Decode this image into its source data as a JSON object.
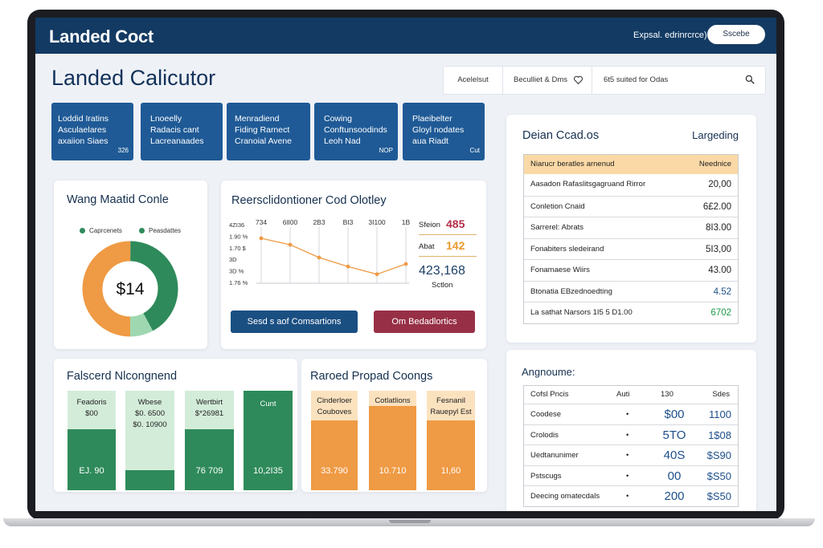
{
  "app": {
    "brand": "Landed Coct",
    "top_link": "Expsal. edrinrcrce)",
    "top_button": "Sscebe"
  },
  "page": {
    "title": "Landed Calicutor"
  },
  "search": {
    "seg1": "Acelelsut",
    "seg2": "Beculliet & Dms",
    "seg3": "6t5 suited for Odas"
  },
  "tiles": [
    {
      "lines": [
        "Loddid Iratins",
        "Asculaelares",
        "axaiion Siaes"
      ],
      "badge": "326"
    },
    {
      "lines": [
        "Lnoeelly",
        "Radacis cant",
        "Lacreanaades"
      ],
      "badge": ""
    },
    {
      "lines": [
        "Menradiend",
        "Fiding Rarnect",
        "Cranoial Avene"
      ],
      "badge": ""
    },
    {
      "lines": [
        "Cowing",
        "Conftunsoodinds",
        "Leoh Nad"
      ],
      "badge": "NOP"
    },
    {
      "lines": [
        "Plaeibelter",
        "Gloyl nodates",
        "aua Riadt"
      ],
      "badge": "Cut"
    }
  ],
  "donut_card": {
    "title": "Wang Maatid Conle",
    "legend": [
      {
        "label": "Caprcenets",
        "color": "#2e8a5a"
      },
      {
        "label": "Peasdattes",
        "color": "#2e8a5a"
      }
    ],
    "center_value": "$14",
    "segments": [
      {
        "name": "orange",
        "fraction": 0.5,
        "color": "#ef9a44"
      },
      {
        "name": "green",
        "fraction": 0.42,
        "color": "#2e8a5a"
      },
      {
        "name": "lightgreen",
        "fraction": 0.08,
        "color": "#9fd8b0"
      }
    ]
  },
  "line_card": {
    "title": "Reersclidontioner Cod Olotley",
    "x_ticks": [
      "734",
      "6lI00",
      "2B3",
      "BI3",
      "3I100",
      "1B"
    ],
    "y_ticks": [
      "4ZI36",
      "1.90 %",
      "1.70 $",
      "3D",
      "3D %",
      "1.76 %"
    ],
    "side_stats": [
      {
        "label": "Sfeion",
        "value": "485",
        "color": "#b3304a"
      },
      {
        "label": "Abat",
        "value": "142",
        "color": "#e89a2c"
      }
    ],
    "big_value": "423,168",
    "big_label": "Sctlon",
    "button1": "Sesd s aof Comsartions",
    "button2": "Om Bedadlortics",
    "colors": {
      "button1": "#1a4f82",
      "button2": "#973046"
    }
  },
  "chart_data": {
    "type": "line",
    "x": [
      "734",
      "6lI00",
      "2B3",
      "BI3",
      "3I100",
      "1B"
    ],
    "series": [
      {
        "values": [
          1.9,
          1.85,
          1.75,
          1.68,
          1.62,
          1.7
        ],
        "color": "#ef9a44"
      }
    ]
  },
  "green_card": {
    "title": "Falscerd Nlcongnend",
    "bars": [
      {
        "label_lines": [
          "Feadoris",
          "$00"
        ],
        "value": "EJ. 90",
        "fill": 0.61,
        "color": "#2e8a5a"
      },
      {
        "label_lines": [
          "Wbese",
          "$0. 6500",
          "$0. 10900"
        ],
        "value": "",
        "fill": 0.2,
        "color": "#2e8a5a"
      },
      {
        "label_lines": [
          "Wertbirt",
          "$*26981"
        ],
        "value": "76 709",
        "fill": 0.61,
        "color": "#2e8a5a"
      },
      {
        "label_lines": [
          "Cunt"
        ],
        "value": "10,2I35",
        "fill": 1.0,
        "color": "#2e8a5a"
      }
    ]
  },
  "orange_card": {
    "title": "Raroed Propad Coongs",
    "bars": [
      {
        "label_lines": [
          "Cinderloer",
          "Couboves"
        ],
        "value": "33.790",
        "fill": 0.7,
        "color": "#ef9a44"
      },
      {
        "label_lines": [
          "Cotlatlions"
        ],
        "value": "10.710",
        "fill": 0.85,
        "color": "#ef9a44"
      },
      {
        "label_lines": [
          "Fesnanil",
          "Rauepyl Est"
        ],
        "value": "1I,60",
        "fill": 0.7,
        "color": "#ef9a44"
      }
    ]
  },
  "detail_card": {
    "title": "Deian Ccad.os",
    "right_title": "Largeding",
    "header_left": "Niarucr beratles arnenud",
    "header_right": "Neednice",
    "rows": [
      {
        "label": "Aasadon Rafaslitsgagruand Rirror",
        "value": "20,00",
        "color": "#222222"
      },
      {
        "label": "Conletion Cnaid",
        "value": "6£2.00",
        "color": "#222222"
      },
      {
        "label": "Sarrerel: Abrats",
        "value": "8I3.00",
        "color": "#222222"
      },
      {
        "label": "Fonabiters sledeirand",
        "value": "5I3,00",
        "color": "#222222"
      },
      {
        "label": "Fonamaese Wiirs",
        "value": "43.00",
        "color": "#222222"
      },
      {
        "label": "Btonatia EBzednoedting",
        "value": "4.52",
        "color": "#1d4f8a"
      },
      {
        "label": "La sathat Narsors 1I5 5 D1.00",
        "value": "6702",
        "color": "#1e9a4a"
      }
    ]
  },
  "mini_card": {
    "title": "Angnoume:",
    "headers": [
      "Cofsl Pncis",
      "Auti",
      "130",
      "Sdes"
    ],
    "rows": [
      {
        "name": "Coodese",
        "dot": "•",
        "mid": "$00",
        "right": "1100"
      },
      {
        "name": "Crolodis",
        "dot": "•",
        "mid": "5TO",
        "right": "1$08"
      },
      {
        "name": "Uedtanunimer",
        "dot": "•",
        "mid": "40S",
        "right": "$S90"
      },
      {
        "name": "Pstscugs",
        "dot": "•",
        "mid": "00",
        "right": "$S50"
      },
      {
        "name": "Deecing omatecdals",
        "dot": "•",
        "mid": "200",
        "right": "$S50"
      }
    ]
  }
}
